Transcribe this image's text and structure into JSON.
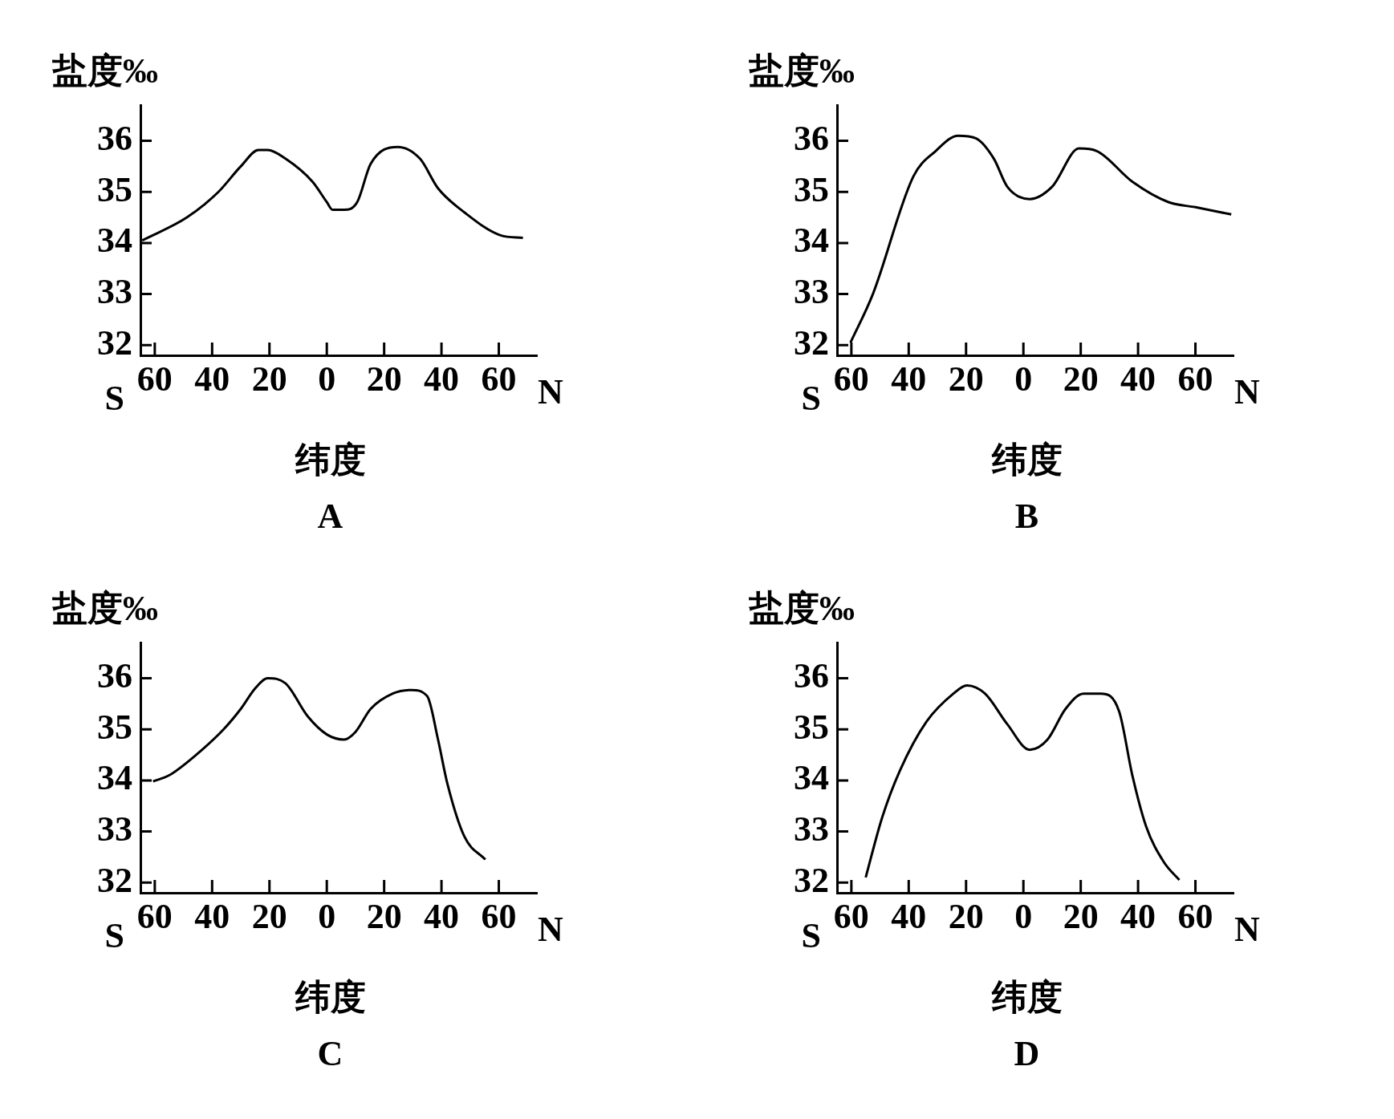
{
  "chart_data": [
    {
      "type": "line",
      "title": "A",
      "xlabel": "纬度",
      "ylabel": "盐度‰",
      "annotations": [
        "S",
        "N"
      ],
      "xlim": [
        -65,
        73
      ],
      "ylim": [
        31.8,
        36.7
      ],
      "xticks": [
        {
          "value": -60,
          "label": "60"
        },
        {
          "value": -40,
          "label": "40"
        },
        {
          "value": -20,
          "label": "20"
        },
        0,
        20,
        40,
        60
      ],
      "yticks": [
        32,
        33,
        34,
        35,
        36
      ],
      "grid": false,
      "legend": false,
      "series": [
        {
          "color": "#000000",
          "x": [
            -64.4,
            -48.8,
            -37.8,
            -30,
            -23.8,
            -20.6,
            -14.4,
            -5,
            0,
            2,
            6,
            10.6,
            15.3,
            24.7,
            32.5,
            38.8,
            48,
            60.6,
            68.4
          ],
          "values": [
            34.05,
            34.5,
            35.0,
            35.5,
            35.82,
            35.82,
            35.65,
            35.2,
            34.8,
            34.65,
            34.65,
            34.8,
            35.55,
            35.88,
            35.65,
            35.07,
            34.6,
            34.15,
            34.1
          ]
        }
      ]
    },
    {
      "type": "line",
      "title": "B",
      "xlabel": "纬度",
      "ylabel": "盐度‰",
      "annotations": [
        "S",
        "N"
      ],
      "xlim": [
        -65,
        73
      ],
      "ylim": [
        31.8,
        36.7
      ],
      "xticks": [
        {
          "value": -60,
          "label": "60"
        },
        {
          "value": -40,
          "label": "40"
        },
        {
          "value": -20,
          "label": "20"
        },
        0,
        20,
        40,
        60
      ],
      "yticks": [
        32,
        33,
        34,
        35,
        36
      ],
      "grid": false,
      "legend": false,
      "series": [
        {
          "color": "#000000",
          "x": [
            -60.3,
            -52.5,
            -38.4,
            -30.6,
            -22.8,
            -16.6,
            -10.3,
            -5.6,
            2.2,
            10,
            19.4,
            25.6,
            38,
            50.6,
            60,
            72.5
          ],
          "values": [
            32.05,
            33.0,
            35.3,
            35.8,
            36.1,
            36.05,
            35.65,
            35.1,
            34.86,
            35.1,
            35.85,
            35.8,
            35.2,
            34.8,
            34.7,
            34.56
          ]
        }
      ]
    },
    {
      "type": "line",
      "title": "C",
      "xlabel": "纬度",
      "ylabel": "盐度‰",
      "annotations": [
        "S",
        "N"
      ],
      "xlim": [
        -65,
        73
      ],
      "ylim": [
        31.8,
        36.7
      ],
      "xticks": [
        {
          "value": -60,
          "label": "60"
        },
        {
          "value": -40,
          "label": "40"
        },
        {
          "value": -20,
          "label": "20"
        },
        0,
        20,
        40,
        60
      ],
      "yticks": [
        32,
        33,
        34,
        35,
        36
      ],
      "grid": false,
      "legend": false,
      "series": [
        {
          "color": "#000000",
          "x": [
            -60.6,
            -55,
            -45.6,
            -36,
            -30,
            -25,
            -20.6,
            -14.4,
            -6.6,
            0,
            6,
            10,
            15.3,
            23,
            29.4,
            35,
            38.8,
            42,
            48,
            55.3
          ],
          "values": [
            33.98,
            34.1,
            34.5,
            35.0,
            35.4,
            35.8,
            36.0,
            35.9,
            35.25,
            34.9,
            34.8,
            34.95,
            35.4,
            35.7,
            35.77,
            35.65,
            34.8,
            33.95,
            32.9,
            32.45
          ]
        }
      ]
    },
    {
      "type": "line",
      "title": "D",
      "xlabel": "纬度",
      "ylabel": "盐度‰",
      "annotations": [
        "S",
        "N"
      ],
      "xlim": [
        -65,
        73
      ],
      "ylim": [
        31.8,
        36.7
      ],
      "xticks": [
        {
          "value": -60,
          "label": "60"
        },
        {
          "value": -40,
          "label": "40"
        },
        {
          "value": -20,
          "label": "20"
        },
        0,
        20,
        40,
        60
      ],
      "yticks": [
        32,
        33,
        34,
        35,
        36
      ],
      "grid": false,
      "legend": false,
      "series": [
        {
          "color": "#000000",
          "x": [
            -55,
            -49.4,
            -43,
            -33.8,
            -24.4,
            -19.7,
            -13.4,
            -5.6,
            2.2,
            8.4,
            14.7,
            21,
            27,
            33.4,
            38,
            42.8,
            49,
            54.4
          ],
          "values": [
            32.1,
            33.25,
            34.2,
            35.15,
            35.7,
            35.86,
            35.7,
            35.1,
            34.6,
            34.8,
            35.4,
            35.7,
            35.7,
            35.35,
            34.1,
            33.1,
            32.4,
            32.05
          ]
        }
      ]
    }
  ]
}
